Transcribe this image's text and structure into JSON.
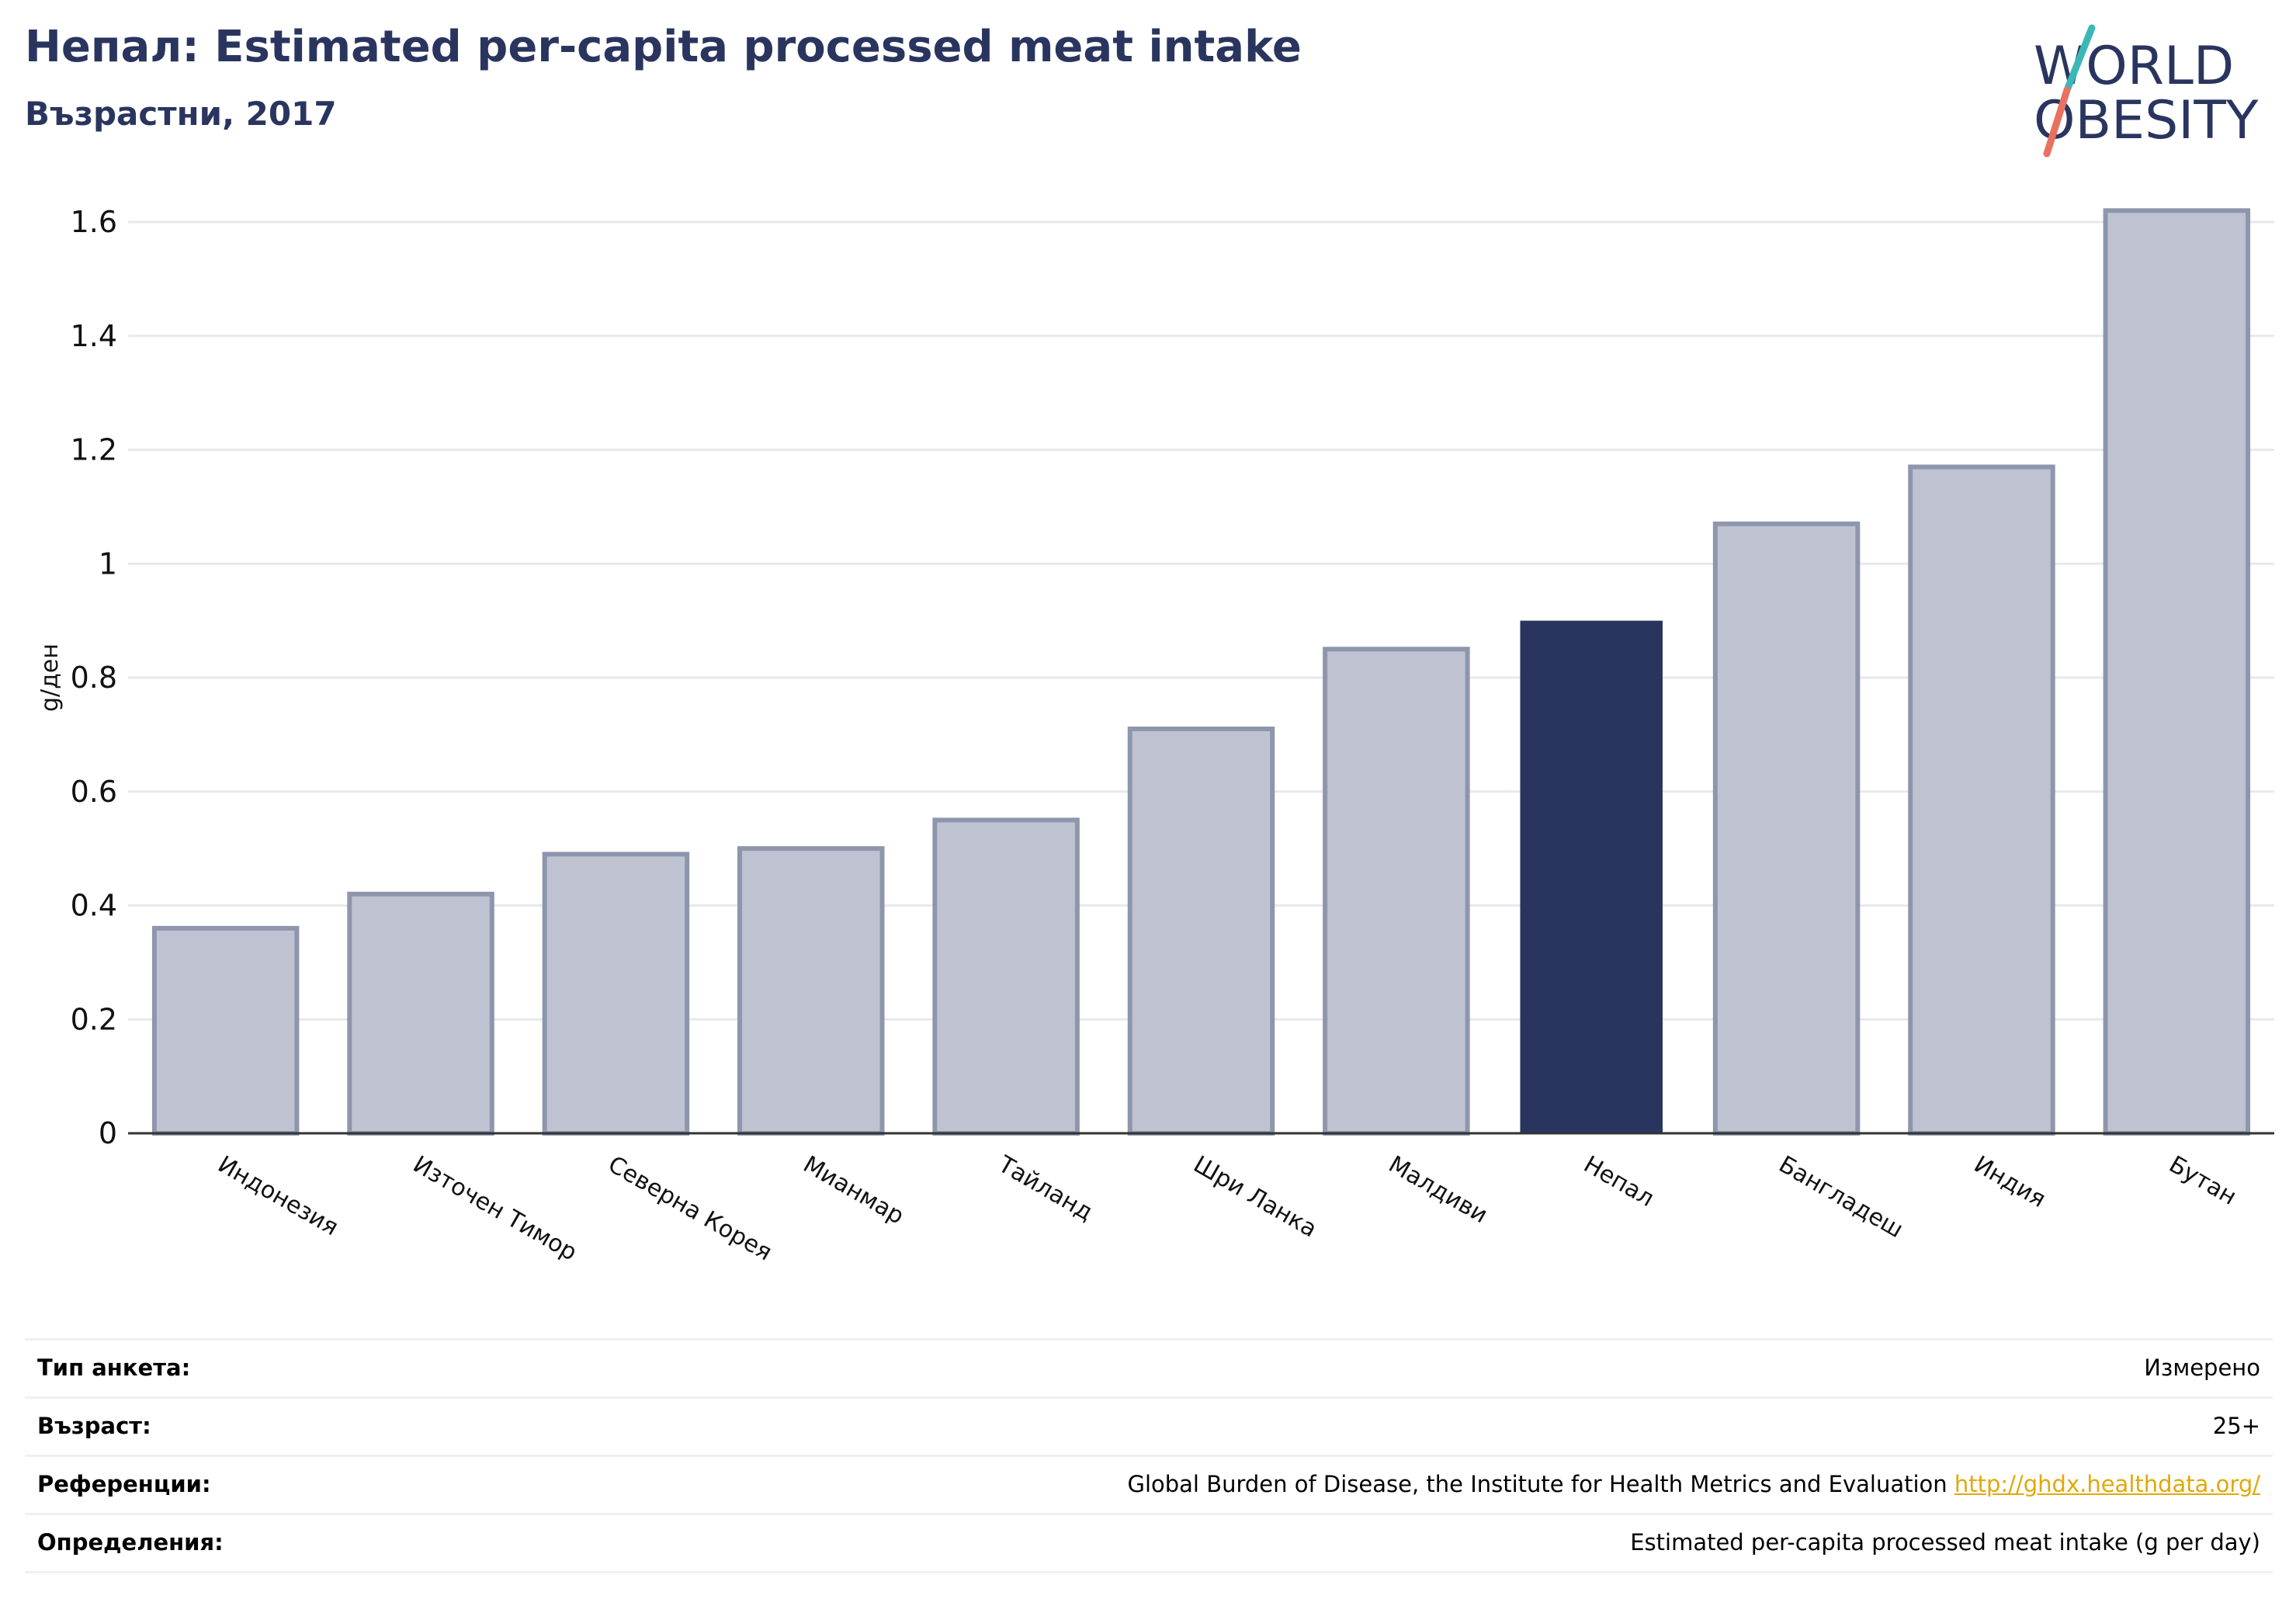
{
  "header": {
    "title": "Непал: Estimated per-capita processed meat intake",
    "subtitle": "Възрастни, 2017"
  },
  "logo": {
    "line1": "WORLD",
    "line2": "OBESITY"
  },
  "colors": {
    "bar": "#bfc3d1",
    "bar_border": "#8e96ad",
    "highlight": "#2a355f",
    "grid": "#e6e9ee",
    "axis": "#333333",
    "link": "#e2a80a"
  },
  "chart_data": {
    "type": "bar",
    "ylabel": "g/ден",
    "ylim": [
      0,
      1.6
    ],
    "yticks": [
      {
        "value": 0,
        "label": "0"
      },
      {
        "value": 0.2,
        "label": "0.2"
      },
      {
        "value": 0.4,
        "label": "0.4"
      },
      {
        "value": 0.6,
        "label": "0.6"
      },
      {
        "value": 0.8,
        "label": "0.8"
      },
      {
        "value": 1,
        "label": "1"
      },
      {
        "value": 1.2,
        "label": "1.2"
      },
      {
        "value": 1.4,
        "label": "1.4"
      },
      {
        "value": 1.6,
        "label": "1.6"
      }
    ],
    "categories": [
      "Индонезия",
      "Източен Тимор",
      "Северна Корея",
      "Мианмар",
      "Тайланд",
      "Шри Ланка",
      "Малдиви",
      "Непал",
      "Бангладеш",
      "Индия",
      "Бутан"
    ],
    "values": [
      0.36,
      0.42,
      0.49,
      0.5,
      0.55,
      0.71,
      0.85,
      0.9,
      1.07,
      1.17,
      1.62
    ],
    "highlight": "Непал",
    "grid": true
  },
  "meta": [
    {
      "key": "Тип анкета:",
      "value": "Измерено"
    },
    {
      "key": "Възраст:",
      "value": "25+"
    },
    {
      "key": "Референции:",
      "value": "Global Burden of Disease, the Institute for Health Metrics and Evaluation",
      "link": "http://ghdx.healthdata.org/"
    },
    {
      "key": "Определения:",
      "value": "Estimated per-capita processed meat intake (g per day)"
    }
  ]
}
